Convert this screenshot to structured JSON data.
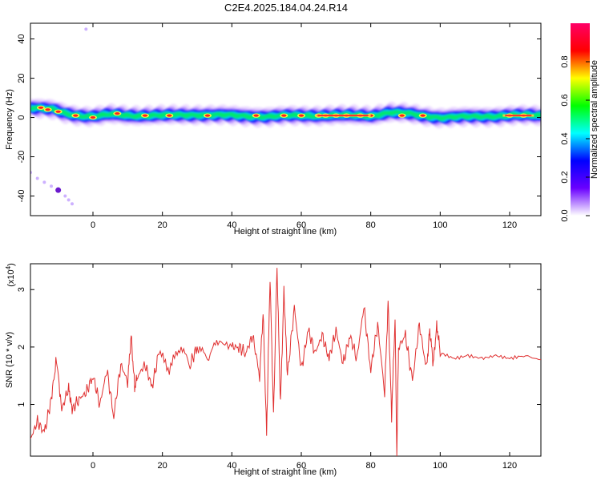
{
  "page": {
    "title": "C2E4.2025.184.04.24.R14"
  },
  "chart_data": [
    {
      "type": "heatmap",
      "title": "C2E4.2025.184.04.24.R14",
      "xlabel": "Height of straight line (km)",
      "ylabel": "Frequency (Hz)",
      "xlim": [
        -18,
        129
      ],
      "ylim": [
        -50,
        48
      ],
      "x_ticks": [
        0,
        20,
        40,
        60,
        80,
        100,
        120
      ],
      "y_ticks": [
        40,
        20,
        0,
        -20,
        -40
      ],
      "colorbar": {
        "label": "Normalized spectral amplitude",
        "range": [
          0,
          1
        ],
        "ticks": [
          "0.0",
          "0.2",
          "0.4",
          "0.6",
          "0.8"
        ],
        "colors": [
          "#ffffff",
          "#6a00ff",
          "#0000ff",
          "#00ffff",
          "#00ff00",
          "#ffff00",
          "#ff0000",
          "#ff0066"
        ]
      },
      "ridge": [
        [
          -18,
          5
        ],
        [
          -12,
          4
        ],
        [
          -8,
          2
        ],
        [
          -4,
          1
        ],
        [
          0,
          0.5
        ],
        [
          5,
          1.5
        ],
        [
          10,
          1
        ],
        [
          20,
          1
        ],
        [
          30,
          1.5
        ],
        [
          40,
          1
        ],
        [
          50,
          0.5
        ],
        [
          60,
          1
        ],
        [
          70,
          1
        ],
        [
          80,
          1
        ],
        [
          85,
          2.5
        ],
        [
          90,
          2
        ],
        [
          95,
          1
        ],
        [
          100,
          0
        ],
        [
          110,
          0.5
        ],
        [
          120,
          1
        ],
        [
          129,
          1
        ]
      ],
      "hot_spots": [
        [
          -15,
          5
        ],
        [
          -13,
          4
        ],
        [
          -10,
          3
        ],
        [
          -5,
          1
        ],
        [
          0,
          0
        ],
        [
          7,
          2
        ],
        [
          15,
          1
        ],
        [
          22,
          1
        ],
        [
          33,
          1
        ],
        [
          47,
          1
        ],
        [
          55,
          1
        ],
        [
          60,
          1
        ],
        [
          65,
          1
        ],
        [
          67,
          1
        ],
        [
          70,
          1
        ],
        [
          73,
          1
        ],
        [
          77,
          1
        ],
        [
          80,
          1
        ],
        [
          89,
          1
        ],
        [
          95,
          1
        ],
        [
          120,
          1
        ],
        [
          124,
          1
        ]
      ],
      "scatter_tail": [
        [
          -18,
          -28
        ],
        [
          -16,
          -31
        ],
        [
          -14,
          -33
        ],
        [
          -12,
          -35
        ],
        [
          -10,
          -37
        ],
        [
          -8,
          -40
        ],
        [
          -7,
          -42
        ],
        [
          -6,
          -44
        ],
        [
          -2,
          45
        ]
      ]
    },
    {
      "type": "line",
      "xlabel": "Height of straight line (km)",
      "ylabel": "SNR (10 * v/v)",
      "y_multiplier": "(x10",
      "y_multiplier_exp": "4",
      "y_multiplier_close": ")",
      "xlim": [
        -18,
        129
      ],
      "ylim": [
        0.1,
        3.45
      ],
      "x_ticks": [
        0,
        20,
        40,
        60,
        80,
        100,
        120
      ],
      "y_ticks": [
        1,
        2,
        3
      ],
      "series": [
        {
          "color": "#e03030",
          "x": [
            -18,
            -16,
            -14,
            -12,
            -10.5,
            -9,
            -7,
            -6,
            -4,
            -2,
            0,
            2,
            4,
            6,
            8,
            10,
            11,
            12,
            13,
            15,
            17,
            19,
            22,
            25,
            28,
            30,
            33,
            36,
            40,
            42,
            44,
            46,
            48,
            49,
            50,
            51,
            52,
            53,
            54,
            55,
            56,
            58,
            60,
            62,
            64,
            66,
            68,
            70,
            72,
            74,
            76,
            78,
            80,
            82,
            84,
            85,
            86,
            87,
            87.5,
            88,
            90,
            92,
            94,
            96,
            97,
            98,
            99,
            100,
            104,
            108,
            112,
            116,
            120,
            124,
            129
          ],
          "values": [
            0.4,
            0.7,
            0.5,
            1.1,
            1.8,
            0.9,
            1.3,
            0.9,
            1.1,
            1.2,
            1.5,
            1.0,
            1.6,
            0.8,
            1.7,
            1.4,
            2.2,
            1.3,
            1.5,
            1.7,
            1.3,
            1.9,
            1.6,
            2.0,
            1.7,
            2.0,
            1.8,
            2.1,
            2.0,
            2.0,
            1.9,
            2.2,
            1.5,
            2.6,
            0.5,
            3.2,
            0.8,
            3.4,
            1.0,
            3.0,
            1.5,
            2.7,
            1.6,
            2.3,
            1.9,
            2.2,
            1.8,
            2.3,
            1.7,
            2.2,
            1.8,
            2.7,
            1.6,
            2.4,
            1.2,
            2.8,
            0.8,
            2.5,
            0.1,
            2.0,
            2.2,
            1.4,
            2.4,
            1.6,
            2.3,
            1.7,
            2.4,
            1.9,
            1.8,
            1.85,
            1.8,
            1.85,
            1.8,
            1.85,
            1.78
          ]
        }
      ]
    }
  ]
}
